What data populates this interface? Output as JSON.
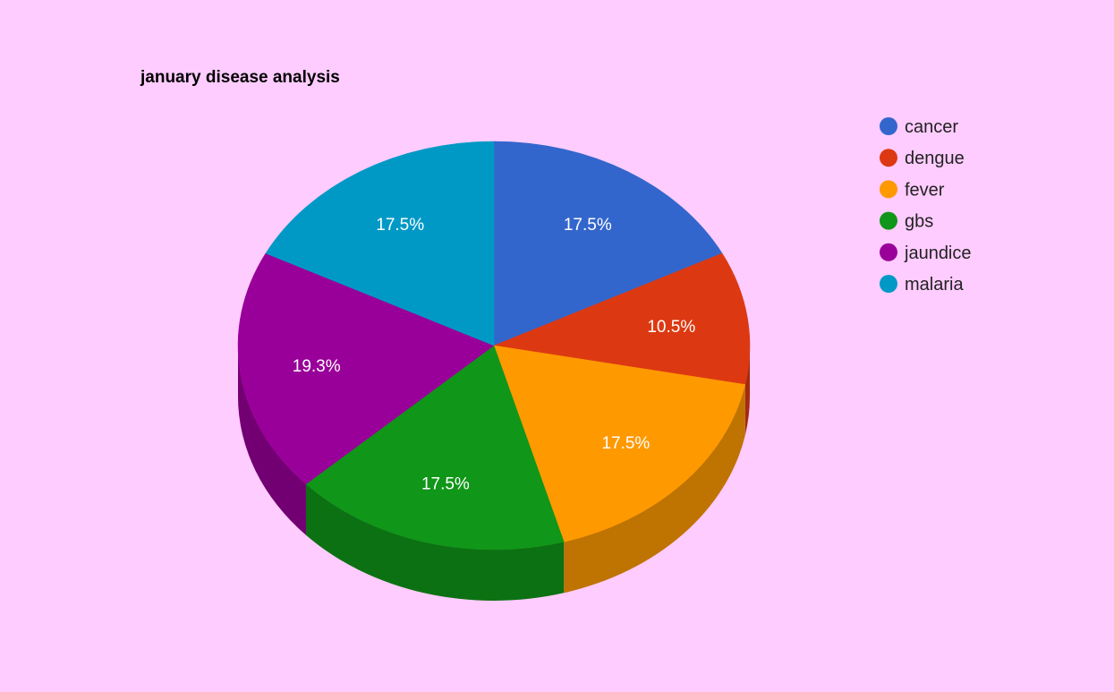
{
  "chart_data": {
    "type": "pie",
    "title": "january disease analysis",
    "three_d": true,
    "legend_position": "right",
    "slices": [
      {
        "label": "cancer",
        "percent": 17.5,
        "display": "17.5%",
        "color": "#3366cc",
        "side_color": "#264d99"
      },
      {
        "label": "dengue",
        "percent": 10.5,
        "display": "10.5%",
        "color": "#dc3912",
        "side_color": "#a52b0e"
      },
      {
        "label": "fever",
        "percent": 17.5,
        "display": "17.5%",
        "color": "#ff9900",
        "side_color": "#bf7300"
      },
      {
        "label": "gbs",
        "percent": 17.5,
        "display": "17.5%",
        "color": "#109618",
        "side_color": "#0c7112"
      },
      {
        "label": "jaundice",
        "percent": 19.3,
        "display": "19.3%",
        "color": "#990099",
        "side_color": "#730073"
      },
      {
        "label": "malaria",
        "percent": 17.5,
        "display": "17.5%",
        "color": "#0099c6",
        "side_color": "#007395"
      }
    ]
  }
}
